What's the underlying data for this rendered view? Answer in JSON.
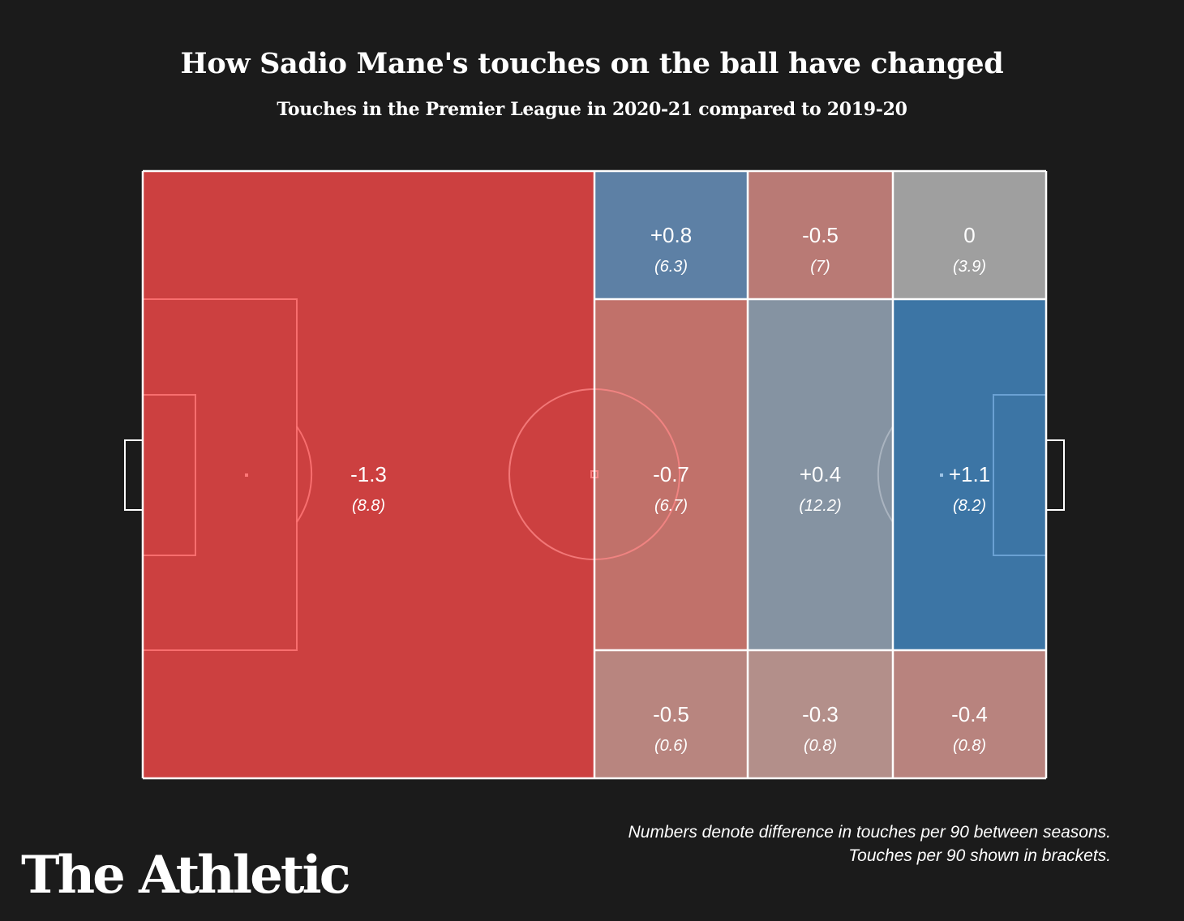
{
  "chart_data": {
    "type": "heatmap",
    "title": "How Sadio Mane's touches on the ball have changed",
    "subtitle": "Touches in the Premier League in 2020-21 compared to 2019-20",
    "zones": [
      {
        "id": "own-half",
        "value": "-1.3",
        "total": "(8.8)",
        "difference": -1.3,
        "touches_per_90": 8.8,
        "color": "#cc4040"
      },
      {
        "id": "top-1",
        "value": "+0.8",
        "total": "(6.3)",
        "difference": 0.8,
        "touches_per_90": 6.3,
        "color": "#5d80a5"
      },
      {
        "id": "top-2",
        "value": "-0.5",
        "total": "(7)",
        "difference": -0.5,
        "touches_per_90": 7,
        "color": "#b97a75"
      },
      {
        "id": "top-3",
        "value": "0",
        "total": "(3.9)",
        "difference": 0,
        "touches_per_90": 3.9,
        "color": "#9f9f9f"
      },
      {
        "id": "middle-1",
        "value": "-0.7",
        "total": "(6.7)",
        "difference": -0.7,
        "touches_per_90": 6.7,
        "color": "#c1716a"
      },
      {
        "id": "middle-2",
        "value": "+0.4",
        "total": "(12.2)",
        "difference": 0.4,
        "touches_per_90": 12.2,
        "color": "#8593a2"
      },
      {
        "id": "middle-3",
        "value": "+1.1",
        "total": "(8.2)",
        "difference": 1.1,
        "touches_per_90": 8.2,
        "color": "#3c75a5"
      },
      {
        "id": "bottom-1",
        "value": "-0.5",
        "total": "(0.6)",
        "difference": -0.5,
        "touches_per_90": 0.6,
        "color": "#b8857f"
      },
      {
        "id": "bottom-2",
        "value": "-0.3",
        "total": "(0.8)",
        "difference": -0.3,
        "touches_per_90": 0.8,
        "color": "#b38f8a"
      },
      {
        "id": "bottom-3",
        "value": "-0.4",
        "total": "(0.8)",
        "difference": -0.4,
        "touches_per_90": 0.8,
        "color": "#b8837e"
      }
    ]
  },
  "note": {
    "line1": "Numbers denote difference in touches per 90 between seasons.",
    "line2": "Touches per 90 shown in brackets."
  },
  "logo": "The Athletic",
  "colors": {
    "background": "#1b1b1b",
    "pitch_lines": "#ffffff",
    "own_half_markings": "#ff7777"
  }
}
